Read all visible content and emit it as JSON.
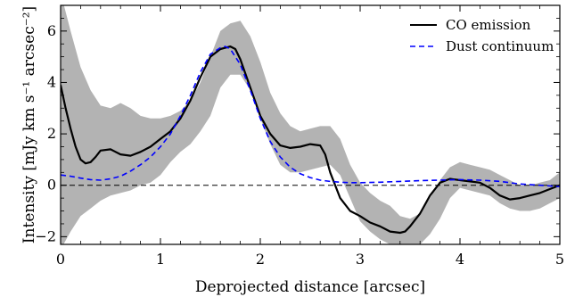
{
  "chart_data": {
    "type": "line",
    "title": "",
    "xlabel": "Deprojected distance [arcsec]",
    "ylabel": "Intensity [mJy km s⁻¹ arcsec⁻²]",
    "xlim": [
      0,
      5
    ],
    "ylim": [
      -2.3,
      7
    ],
    "xticks": [
      0,
      1,
      2,
      3,
      4,
      5
    ],
    "xtick_labels": [
      "0",
      "1",
      "2",
      "3",
      "4",
      "5"
    ],
    "yticks": [
      -2,
      0,
      2,
      4,
      6
    ],
    "ytick_labels": [
      "−2",
      "0",
      "2",
      "4",
      "6"
    ],
    "grid": false,
    "legend_position": "top-right",
    "zero_line": {
      "y": 0,
      "style": "dashed",
      "color": "#000000"
    },
    "band": {
      "color": "#b3b3b3",
      "x": [
        0,
        0.1,
        0.2,
        0.3,
        0.4,
        0.5,
        0.6,
        0.7,
        0.8,
        0.9,
        1.0,
        1.1,
        1.2,
        1.3,
        1.4,
        1.5,
        1.6,
        1.7,
        1.8,
        1.9,
        2.0,
        2.1,
        2.2,
        2.3,
        2.4,
        2.5,
        2.6,
        2.7,
        2.8,
        2.9,
        3.0,
        3.1,
        3.2,
        3.3,
        3.4,
        3.5,
        3.6,
        3.7,
        3.8,
        3.9,
        4.0,
        4.1,
        4.2,
        4.3,
        4.4,
        4.5,
        4.6,
        4.7,
        4.8,
        4.9,
        5.0
      ],
      "upper": [
        7.5,
        6.0,
        4.6,
        3.7,
        3.1,
        3.0,
        3.2,
        3.0,
        2.7,
        2.6,
        2.6,
        2.7,
        2.9,
        3.3,
        4.0,
        5.0,
        6.0,
        6.3,
        6.4,
        5.8,
        4.8,
        3.6,
        2.8,
        2.3,
        2.1,
        2.2,
        2.3,
        2.3,
        1.8,
        0.8,
        0.1,
        -0.3,
        -0.6,
        -0.8,
        -1.2,
        -1.3,
        -1.1,
        -0.5,
        0.2,
        0.7,
        0.9,
        0.8,
        0.7,
        0.6,
        0.4,
        0.2,
        0.0,
        0.0,
        0.1,
        0.2,
        0.5
      ],
      "lower": [
        -2.5,
        -1.8,
        -1.2,
        -0.9,
        -0.6,
        -0.4,
        -0.3,
        -0.2,
        0.0,
        0.1,
        0.4,
        0.9,
        1.3,
        1.6,
        2.1,
        2.7,
        3.8,
        4.3,
        4.3,
        3.7,
        2.6,
        1.6,
        0.8,
        0.5,
        0.5,
        0.6,
        0.7,
        0.8,
        0.4,
        -0.5,
        -1.4,
        -1.8,
        -2.1,
        -2.3,
        -2.4,
        -2.4,
        -2.3,
        -1.9,
        -1.3,
        -0.5,
        -0.1,
        -0.2,
        -0.3,
        -0.4,
        -0.7,
        -0.9,
        -1.0,
        -1.0,
        -0.9,
        -0.7,
        -0.5
      ]
    },
    "series": [
      {
        "name": "CO emission",
        "color": "#000000",
        "style": "solid",
        "x": [
          0,
          0.05,
          0.1,
          0.15,
          0.2,
          0.25,
          0.3,
          0.35,
          0.4,
          0.5,
          0.6,
          0.7,
          0.8,
          0.9,
          1.0,
          1.1,
          1.2,
          1.3,
          1.4,
          1.5,
          1.6,
          1.7,
          1.75,
          1.8,
          1.9,
          2.0,
          2.1,
          2.2,
          2.3,
          2.4,
          2.5,
          2.6,
          2.65,
          2.7,
          2.8,
          2.9,
          3.0,
          3.1,
          3.2,
          3.3,
          3.4,
          3.45,
          3.5,
          3.6,
          3.7,
          3.8,
          3.9,
          4.0,
          4.1,
          4.2,
          4.3,
          4.4,
          4.5,
          4.6,
          4.7,
          4.8,
          4.9,
          5.0
        ],
        "y": [
          3.9,
          3.0,
          2.2,
          1.5,
          1.0,
          0.85,
          0.9,
          1.1,
          1.35,
          1.4,
          1.2,
          1.15,
          1.3,
          1.5,
          1.8,
          2.1,
          2.6,
          3.3,
          4.2,
          5.0,
          5.3,
          5.4,
          5.3,
          4.9,
          3.8,
          2.7,
          2.0,
          1.55,
          1.45,
          1.5,
          1.6,
          1.55,
          1.2,
          0.5,
          -0.5,
          -1.0,
          -1.2,
          -1.45,
          -1.6,
          -1.8,
          -1.85,
          -1.8,
          -1.6,
          -1.1,
          -0.4,
          0.1,
          0.25,
          0.2,
          0.15,
          0.1,
          -0.1,
          -0.4,
          -0.55,
          -0.5,
          -0.4,
          -0.3,
          -0.15,
          0.0
        ]
      },
      {
        "name": "Dust continuum",
        "color": "#0000ff",
        "style": "dashed",
        "x": [
          0,
          0.1,
          0.2,
          0.3,
          0.4,
          0.5,
          0.6,
          0.7,
          0.8,
          0.9,
          1.0,
          1.1,
          1.2,
          1.3,
          1.4,
          1.5,
          1.6,
          1.65,
          1.7,
          1.8,
          1.9,
          2.0,
          2.1,
          2.2,
          2.3,
          2.4,
          2.5,
          2.6,
          2.7,
          2.8,
          2.9,
          3.0,
          3.2,
          3.4,
          3.6,
          3.8,
          4.0,
          4.2,
          4.4,
          4.6,
          4.8,
          5.0
        ],
        "y": [
          0.4,
          0.35,
          0.28,
          0.22,
          0.2,
          0.25,
          0.35,
          0.55,
          0.8,
          1.1,
          1.5,
          2.0,
          2.7,
          3.5,
          4.4,
          5.1,
          5.35,
          5.4,
          5.3,
          4.7,
          3.7,
          2.6,
          1.7,
          1.1,
          0.7,
          0.45,
          0.3,
          0.2,
          0.15,
          0.12,
          0.1,
          0.1,
          0.12,
          0.15,
          0.18,
          0.2,
          0.22,
          0.2,
          0.15,
          0.05,
          0.0,
          -0.05
        ]
      }
    ]
  }
}
